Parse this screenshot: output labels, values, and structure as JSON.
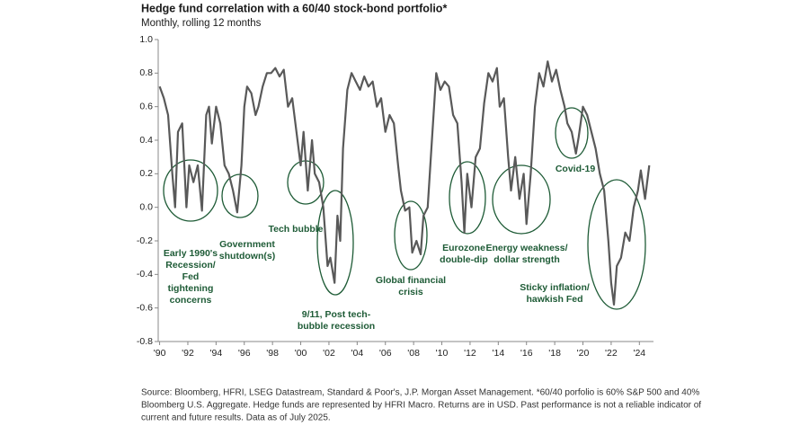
{
  "chart_data": {
    "type": "line",
    "title": "Hedge fund correlation with a 60/40 stock-bond portfolio*",
    "subtitle": "Monthly, rolling 12 months",
    "color": "#595959",
    "xlim": [
      1989.9,
      2025.0
    ],
    "ylim": [
      -0.8,
      1.0
    ],
    "yticks": [
      {
        "value": 1.0,
        "label": "1.0"
      },
      0.8,
      0.6,
      0.4,
      0.2,
      {
        "value": 0,
        "label": "0.0"
      },
      -0.2,
      -0.4,
      -0.6,
      -0.8
    ],
    "xticks": [
      {
        "value": 1990,
        "label": "'90"
      },
      {
        "value": 1992,
        "label": "'92"
      },
      {
        "value": 1994,
        "label": "'94"
      },
      {
        "value": 1996,
        "label": "'96"
      },
      {
        "value": 1998,
        "label": "'98"
      },
      {
        "value": 2000,
        "label": "'00"
      },
      {
        "value": 2002,
        "label": "'02"
      },
      {
        "value": 2004,
        "label": "'04"
      },
      {
        "value": 2006,
        "label": "'06"
      },
      {
        "value": 2008,
        "label": "'08"
      },
      {
        "value": 2010,
        "label": "'10"
      },
      {
        "value": 2012,
        "label": "'12"
      },
      {
        "value": 2014,
        "label": "'14"
      },
      {
        "value": 2016,
        "label": "'16"
      },
      {
        "value": 2018,
        "label": "'18"
      },
      {
        "value": 2020,
        "label": "'20"
      },
      {
        "value": 2022,
        "label": "'22"
      },
      {
        "value": 2024,
        "label": "'24"
      }
    ],
    "x": [
      1990.0,
      1990.3,
      1990.6,
      1990.9,
      1991.1,
      1991.3,
      1991.6,
      1991.9,
      1992.1,
      1992.4,
      1992.7,
      1993.0,
      1993.3,
      1993.5,
      1993.7,
      1994.0,
      1994.3,
      1994.6,
      1994.9,
      1995.2,
      1995.5,
      1995.8,
      1996.0,
      1996.2,
      1996.5,
      1996.8,
      1997.0,
      1997.3,
      1997.6,
      1997.9,
      1998.2,
      1998.5,
      1998.8,
      1999.1,
      1999.4,
      1999.7,
      2000.0,
      2000.2,
      2000.5,
      2000.8,
      2001.0,
      2001.3,
      2001.6,
      2001.9,
      2002.1,
      2002.4,
      2002.6,
      2002.8,
      2003.0,
      2003.3,
      2003.6,
      2003.9,
      2004.2,
      2004.5,
      2004.8,
      2005.1,
      2005.4,
      2005.7,
      2006.0,
      2006.3,
      2006.6,
      2006.9,
      2007.1,
      2007.4,
      2007.7,
      2007.9,
      2008.2,
      2008.5,
      2008.7,
      2009.0,
      2009.3,
      2009.6,
      2009.9,
      2010.2,
      2010.5,
      2010.8,
      2011.1,
      2011.4,
      2011.6,
      2011.8,
      2012.1,
      2012.4,
      2012.7,
      2013.0,
      2013.3,
      2013.6,
      2013.9,
      2014.1,
      2014.4,
      2014.7,
      2014.9,
      2015.2,
      2015.5,
      2015.8,
      2016.0,
      2016.3,
      2016.6,
      2016.9,
      2017.2,
      2017.5,
      2017.8,
      2018.1,
      2018.4,
      2018.7,
      2018.9,
      2019.2,
      2019.5,
      2019.7,
      2020.0,
      2020.3,
      2020.6,
      2020.9,
      2021.2,
      2021.5,
      2021.8,
      2022.0,
      2022.2,
      2022.4,
      2022.7,
      2023.0,
      2023.3,
      2023.6,
      2023.9,
      2024.1,
      2024.4,
      2024.7
    ],
    "values": [
      0.72,
      0.65,
      0.55,
      0.2,
      0.0,
      0.45,
      0.5,
      0.0,
      0.25,
      0.15,
      0.25,
      -0.02,
      0.55,
      0.6,
      0.38,
      0.6,
      0.5,
      0.25,
      0.2,
      0.1,
      -0.03,
      0.25,
      0.6,
      0.72,
      0.68,
      0.55,
      0.6,
      0.72,
      0.8,
      0.8,
      0.83,
      0.78,
      0.82,
      0.6,
      0.65,
      0.45,
      0.25,
      0.45,
      0.1,
      0.4,
      0.2,
      0.15,
      0.0,
      -0.35,
      -0.3,
      -0.45,
      -0.05,
      -0.2,
      0.35,
      0.7,
      0.8,
      0.75,
      0.7,
      0.78,
      0.72,
      0.75,
      0.6,
      0.65,
      0.45,
      0.55,
      0.5,
      0.25,
      0.1,
      -0.02,
      0.0,
      -0.27,
      -0.2,
      -0.28,
      -0.05,
      0.0,
      0.4,
      0.8,
      0.7,
      0.75,
      0.72,
      0.55,
      0.5,
      0.15,
      -0.15,
      0.2,
      0.0,
      0.3,
      0.35,
      0.62,
      0.8,
      0.75,
      0.83,
      0.6,
      0.65,
      0.3,
      0.1,
      0.3,
      0.05,
      0.2,
      -0.1,
      0.2,
      0.6,
      0.8,
      0.72,
      0.87,
      0.75,
      0.82,
      0.7,
      0.6,
      0.5,
      0.45,
      0.32,
      0.42,
      0.6,
      0.55,
      0.45,
      0.35,
      0.2,
      0.1,
      -0.2,
      -0.45,
      -0.58,
      -0.35,
      -0.3,
      -0.15,
      -0.2,
      0.0,
      0.1,
      0.22,
      0.05,
      0.25
    ],
    "annotations": [
      {
        "lines": [
          "Early 1990's",
          "Recession/",
          "Fed",
          "tightening",
          "concerns"
        ]
      },
      {
        "lines": [
          "Government",
          "shutdown(s)"
        ]
      },
      {
        "lines": [
          "Tech bubble"
        ]
      },
      {
        "lines": [
          "9/11, Post tech-",
          "bubble recession"
        ]
      },
      {
        "lines": [
          "Global financial",
          "crisis"
        ]
      },
      {
        "lines": [
          "Eurozone",
          "double-dip"
        ]
      },
      {
        "lines": [
          "Energy weakness/",
          "dollar strength"
        ]
      },
      {
        "lines": [
          "Sticky inflation/",
          "hawkish Fed"
        ]
      },
      {
        "lines": [
          "Covid-19"
        ]
      }
    ],
    "footnote": [
      "Source: Bloomberg, HFRI, LSEG Datastream, Standard & Poor's, J.P. Morgan Asset Management. *60/40 porfolio is 60% S&P 500 and 40%",
      "Bloomberg U.S. Aggregate. Hedge funds are represented by HFRI Macro. Returns are in USD. Past performance is not a reliable indicator of",
      "current and future results. Data as of July 2025."
    ]
  }
}
